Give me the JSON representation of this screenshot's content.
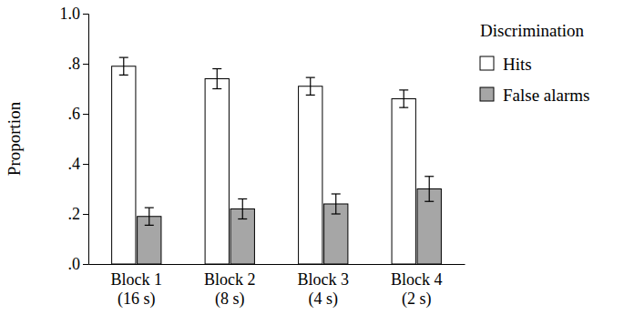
{
  "chart_data": {
    "type": "bar",
    "y_label": "Proportion",
    "categories": [
      "Block 1\n(16 s)",
      "Block 2\n(8 s)",
      "Block 3\n(4 s)",
      "Block 4\n(2 s)"
    ],
    "series": [
      {
        "name": "Hits",
        "color": "#ffffff",
        "values": [
          0.79,
          0.74,
          0.71,
          0.66
        ],
        "errors": [
          0.035,
          0.04,
          0.035,
          0.035
        ]
      },
      {
        "name": "False alarms",
        "color": "#a6a6a6",
        "values": [
          0.19,
          0.22,
          0.24,
          0.3
        ],
        "errors": [
          0.035,
          0.04,
          0.04,
          0.05
        ]
      }
    ],
    "ylim": [
      0,
      1
    ],
    "yticks": [
      {
        "value": 0,
        "label": ".0"
      },
      {
        "value": 0.2,
        "label": ".2"
      },
      {
        "value": 0.4,
        "label": ".4"
      },
      {
        "value": 0.6,
        "label": ".6"
      },
      {
        "value": 0.8,
        "label": ".8"
      },
      {
        "value": 1,
        "label": "1.0"
      }
    ],
    "legend": "right",
    "legend_title": "Discrimination",
    "grid": false
  }
}
